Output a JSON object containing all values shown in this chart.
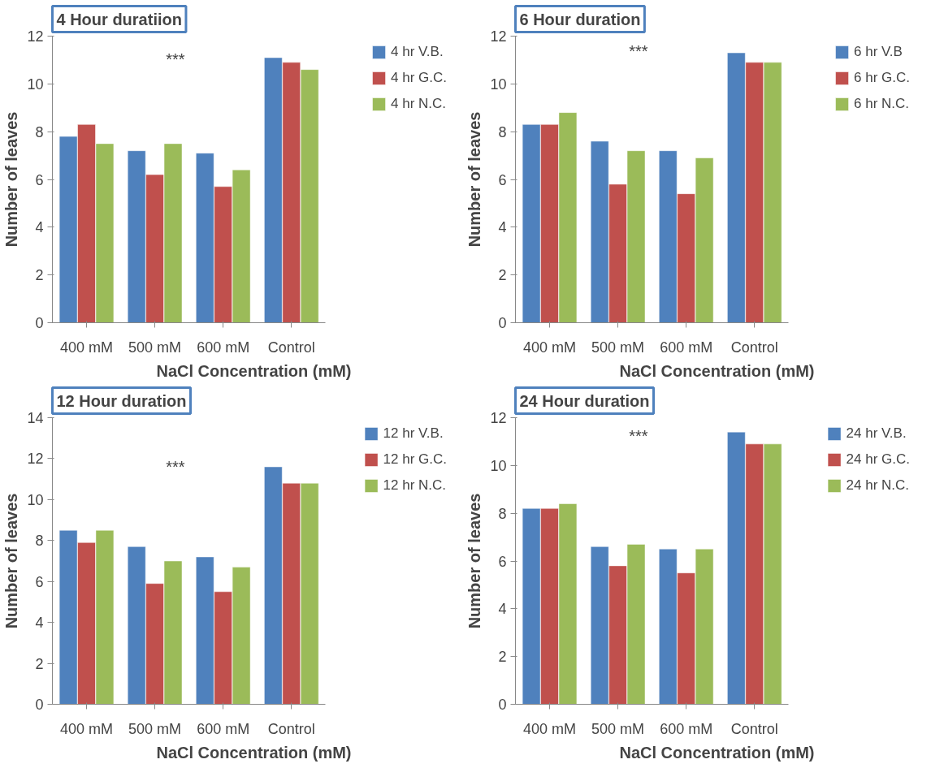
{
  "chart_data": [
    {
      "type": "bar",
      "title": "4 Hour duratiion",
      "xlabel": "NaCl Concentration (mM)",
      "ylabel": "Number of leaves",
      "categories": [
        "400 mM",
        "500 mM",
        "600 mM",
        "Control"
      ],
      "series": [
        {
          "name": "4 hr V.B.",
          "color": "#4f81bd",
          "values": [
            7.8,
            7.2,
            7.1,
            11.1
          ]
        },
        {
          "name": "4 hr G.C.",
          "color": "#c0504d",
          "values": [
            8.3,
            6.2,
            5.7,
            10.9
          ]
        },
        {
          "name": "4 hr N.C.",
          "color": "#9bbb59",
          "values": [
            7.5,
            7.5,
            6.4,
            10.6
          ]
        }
      ],
      "ylim": [
        0,
        12
      ],
      "yticks": [
        0,
        2,
        4,
        6,
        8,
        10,
        12
      ],
      "grid": false,
      "legend": "top right",
      "annotations": [
        "***"
      ]
    },
    {
      "type": "bar",
      "title": "6 Hour duration",
      "xlabel": "NaCl Concentration (mM)",
      "ylabel": "Number of leaves",
      "categories": [
        "400 mM",
        "500 mM",
        "600 mM",
        "Control"
      ],
      "series": [
        {
          "name": "6 hr V.B",
          "color": "#4f81bd",
          "values": [
            8.3,
            7.6,
            7.2,
            11.3
          ]
        },
        {
          "name": "6 hr G.C.",
          "color": "#c0504d",
          "values": [
            8.3,
            5.8,
            5.4,
            10.9
          ]
        },
        {
          "name": "6 hr N.C.",
          "color": "#9bbb59",
          "values": [
            8.8,
            7.2,
            6.9,
            10.9
          ]
        }
      ],
      "ylim": [
        0,
        12
      ],
      "yticks": [
        0,
        2,
        4,
        6,
        8,
        10,
        12
      ],
      "grid": false,
      "legend": "top right",
      "annotations": [
        "***"
      ]
    },
    {
      "type": "bar",
      "title": "12 Hour duration",
      "xlabel": "NaCl Concentration (mM)",
      "ylabel": "Number of leaves",
      "categories": [
        "400 mM",
        "500 mM",
        "600 mM",
        "Control"
      ],
      "series": [
        {
          "name": "12 hr V.B.",
          "color": "#4f81bd",
          "values": [
            8.5,
            7.7,
            7.2,
            11.6
          ]
        },
        {
          "name": "12 hr G.C.",
          "color": "#c0504d",
          "values": [
            7.9,
            5.9,
            5.5,
            10.8
          ]
        },
        {
          "name": "12 hr N.C.",
          "color": "#9bbb59",
          "values": [
            8.5,
            7.0,
            6.7,
            10.8
          ]
        }
      ],
      "ylim": [
        0,
        14
      ],
      "yticks": [
        0,
        2,
        4,
        6,
        8,
        10,
        12,
        14
      ],
      "grid": false,
      "legend": "top right",
      "annotations": [
        "***"
      ]
    },
    {
      "type": "bar",
      "title": "24 Hour duration",
      "xlabel": "NaCl Concentration (mM)",
      "ylabel": "Number of leaves",
      "categories": [
        "400 mM",
        "500 mM",
        "600 mM",
        "Control"
      ],
      "series": [
        {
          "name": "24 hr V.B.",
          "color": "#4f81bd",
          "values": [
            8.2,
            6.6,
            6.5,
            11.4
          ]
        },
        {
          "name": "24 hr G.C.",
          "color": "#c0504d",
          "values": [
            8.2,
            5.8,
            5.5,
            10.9
          ]
        },
        {
          "name": "24 hr N.C.",
          "color": "#9bbb59",
          "values": [
            8.4,
            6.7,
            6.5,
            10.9
          ]
        }
      ],
      "ylim": [
        0,
        12
      ],
      "yticks": [
        0,
        2,
        4,
        6,
        8,
        10,
        12
      ],
      "grid": false,
      "legend": "top right",
      "annotations": [
        "***"
      ]
    }
  ]
}
